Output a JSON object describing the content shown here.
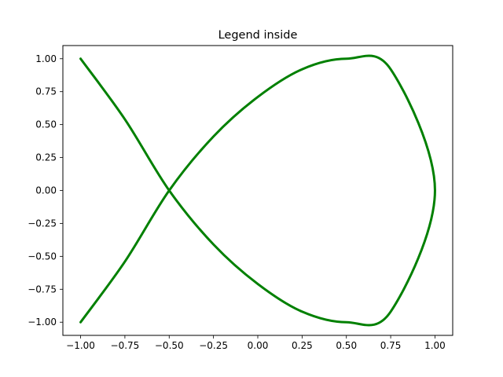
{
  "chart_data": {
    "type": "line",
    "title": "Legend inside",
    "xlabel": "",
    "ylabel": "",
    "xlim": [
      -1.1,
      1.1
    ],
    "ylim": [
      -1.1,
      1.1
    ],
    "grid": false,
    "series": [
      {
        "color": "#008000",
        "x": [
          -1.0,
          -0.75,
          -0.5,
          -0.25,
          0.0,
          0.25,
          0.5,
          0.75,
          1.0,
          0.75,
          0.5,
          0.25,
          0.0,
          -0.25,
          -0.5,
          -0.75,
          -1.0
        ],
        "y": [
          -1.0,
          -0.54,
          0.0,
          0.41,
          0.71,
          0.92,
          1.0,
          0.92,
          0.0,
          -0.92,
          -1.0,
          -0.92,
          -0.71,
          -0.41,
          0.0,
          0.54,
          1.0
        ]
      }
    ],
    "xticks": [
      "−1.00",
      "−0.75",
      "−0.50",
      "−0.25",
      "0.00",
      "0.25",
      "0.50",
      "0.75",
      "1.00"
    ],
    "yticks": [
      "−1.00",
      "−0.75",
      "−0.50",
      "−0.25",
      "0.00",
      "0.25",
      "0.50",
      "0.75",
      "1.00"
    ]
  }
}
